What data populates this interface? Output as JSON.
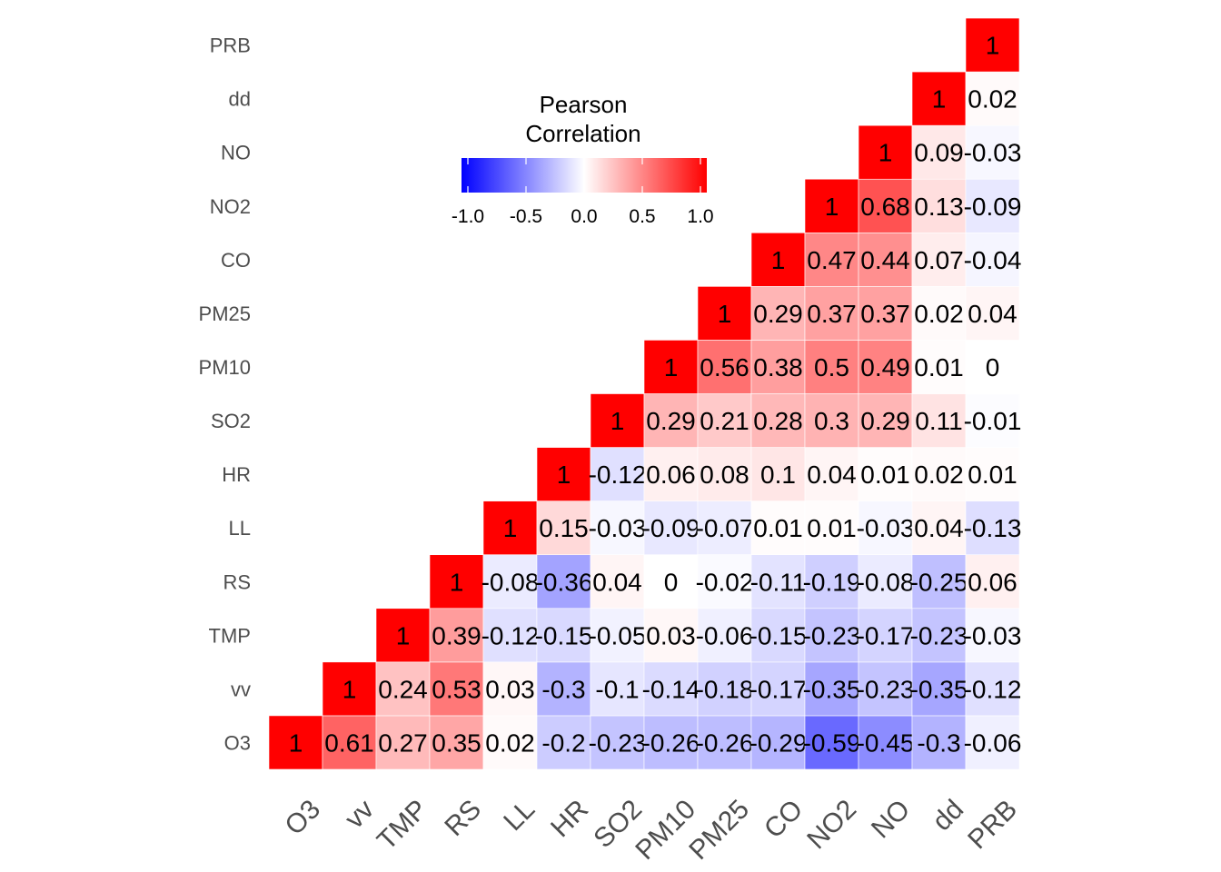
{
  "chart_data": {
    "type": "heatmap",
    "variables": [
      "O3",
      "vv",
      "TMP",
      "RS",
      "LL",
      "HR",
      "SO2",
      "PM10",
      "PM25",
      "CO",
      "NO2",
      "NO",
      "dd",
      "PRB"
    ],
    "matrix": [
      [
        1,
        0.61,
        0.27,
        0.35,
        0.02,
        -0.2,
        -0.23,
        -0.26,
        -0.26,
        -0.29,
        -0.59,
        -0.45,
        -0.3,
        -0.06
      ],
      [
        null,
        1,
        0.24,
        0.53,
        0.03,
        -0.3,
        -0.1,
        -0.14,
        -0.18,
        -0.17,
        -0.35,
        -0.23,
        -0.35,
        -0.12
      ],
      [
        null,
        null,
        1,
        0.39,
        -0.12,
        -0.15,
        -0.05,
        0.03,
        -0.06,
        -0.15,
        -0.23,
        -0.17,
        -0.23,
        -0.03
      ],
      [
        null,
        null,
        null,
        1,
        -0.08,
        -0.36,
        0.04,
        0,
        -0.02,
        -0.11,
        -0.19,
        -0.08,
        -0.25,
        0.06
      ],
      [
        null,
        null,
        null,
        null,
        1,
        0.15,
        -0.03,
        -0.09,
        -0.07,
        0.01,
        0.01,
        -0.03,
        0.04,
        -0.13
      ],
      [
        null,
        null,
        null,
        null,
        null,
        1,
        -0.12,
        0.06,
        0.08,
        0.1,
        0.04,
        0.01,
        0.02,
        0.01
      ],
      [
        null,
        null,
        null,
        null,
        null,
        null,
        1,
        0.29,
        0.21,
        0.28,
        0.3,
        0.29,
        0.11,
        -0.01
      ],
      [
        null,
        null,
        null,
        null,
        null,
        null,
        null,
        1,
        0.56,
        0.38,
        0.5,
        0.49,
        0.01,
        0
      ],
      [
        null,
        null,
        null,
        null,
        null,
        null,
        null,
        null,
        1,
        0.29,
        0.37,
        0.37,
        0.02,
        0.04
      ],
      [
        null,
        null,
        null,
        null,
        null,
        null,
        null,
        null,
        null,
        1,
        0.47,
        0.44,
        0.07,
        -0.04
      ],
      [
        null,
        null,
        null,
        null,
        null,
        null,
        null,
        null,
        null,
        null,
        1,
        0.68,
        0.13,
        -0.09
      ],
      [
        null,
        null,
        null,
        null,
        null,
        null,
        null,
        null,
        null,
        null,
        null,
        1,
        0.09,
        -0.03
      ],
      [
        null,
        null,
        null,
        null,
        null,
        null,
        null,
        null,
        null,
        null,
        null,
        null,
        1,
        0.02
      ],
      [
        null,
        null,
        null,
        null,
        null,
        null,
        null,
        null,
        null,
        null,
        null,
        null,
        null,
        1
      ]
    ],
    "value_range": [
      -1,
      1
    ],
    "legend": {
      "title_lines": [
        "Pearson",
        "Correlation"
      ],
      "ticks": [
        "-1.0",
        "-0.5",
        "0.0",
        "0.5",
        "1.0"
      ],
      "tick_values": [
        -1,
        -0.5,
        0,
        0.5,
        1
      ],
      "placement": "top-center"
    },
    "colors": {
      "low": "#0000ff",
      "mid": "#ffffff",
      "high": "#ff0000"
    }
  }
}
